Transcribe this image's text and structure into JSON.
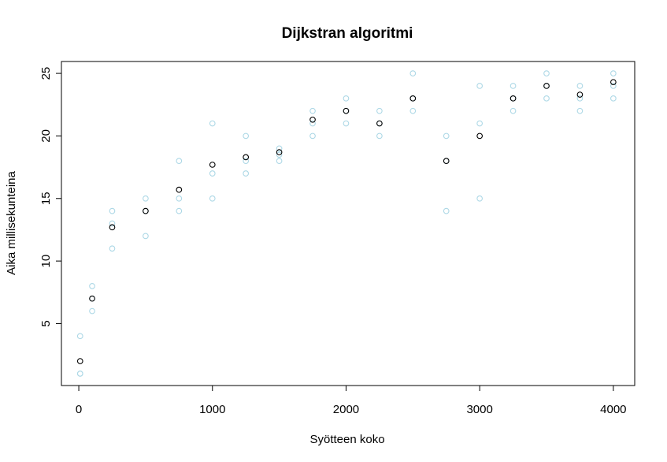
{
  "chart_data": {
    "type": "scatter",
    "title": "Dijkstran algoritmi",
    "xlabel": "Syötteen koko",
    "ylabel": "Aika millisekunteina",
    "xlim": [
      -130,
      4160
    ],
    "ylim": [
      0.05,
      25.95
    ],
    "xticks": [
      "0",
      "1000",
      "2000",
      "3000",
      "4000"
    ],
    "xtick_values": [
      0,
      1000,
      2000,
      3000,
      4000
    ],
    "yticks": [
      "5",
      "10",
      "15",
      "20",
      "25"
    ],
    "ytick_values": [
      5,
      10,
      15,
      20,
      25
    ],
    "grid": false,
    "legend": "none",
    "x": [
      10,
      100,
      250,
      500,
      750,
      1000,
      1250,
      1500,
      1750,
      2000,
      2250,
      2500,
      2750,
      3000,
      3250,
      3500,
      3750,
      4000
    ],
    "series": [
      {
        "color": "#ADD8E6",
        "values": [
          4,
          8,
          14,
          15,
          18,
          21,
          20,
          19,
          22,
          23,
          22,
          25,
          20,
          24,
          24,
          25,
          24,
          25
        ]
      },
      {
        "color": "#ADD8E6",
        "values": [
          1,
          6,
          11,
          12,
          14,
          15,
          17,
          18,
          20,
          21,
          20,
          22,
          14,
          15,
          22,
          23,
          22,
          23
        ]
      },
      {
        "color": "#ADD8E6",
        "values": [
          1,
          7,
          13,
          14,
          15,
          17,
          18,
          18.5,
          21,
          22,
          21,
          23,
          18,
          21,
          23,
          24,
          23,
          24
        ]
      },
      {
        "color": "#000000",
        "values": [
          2,
          7,
          12.7,
          14,
          15.7,
          17.7,
          18.3,
          18.7,
          21.3,
          22,
          21,
          23,
          18,
          20,
          23,
          24,
          23.3,
          24.3
        ]
      }
    ]
  }
}
